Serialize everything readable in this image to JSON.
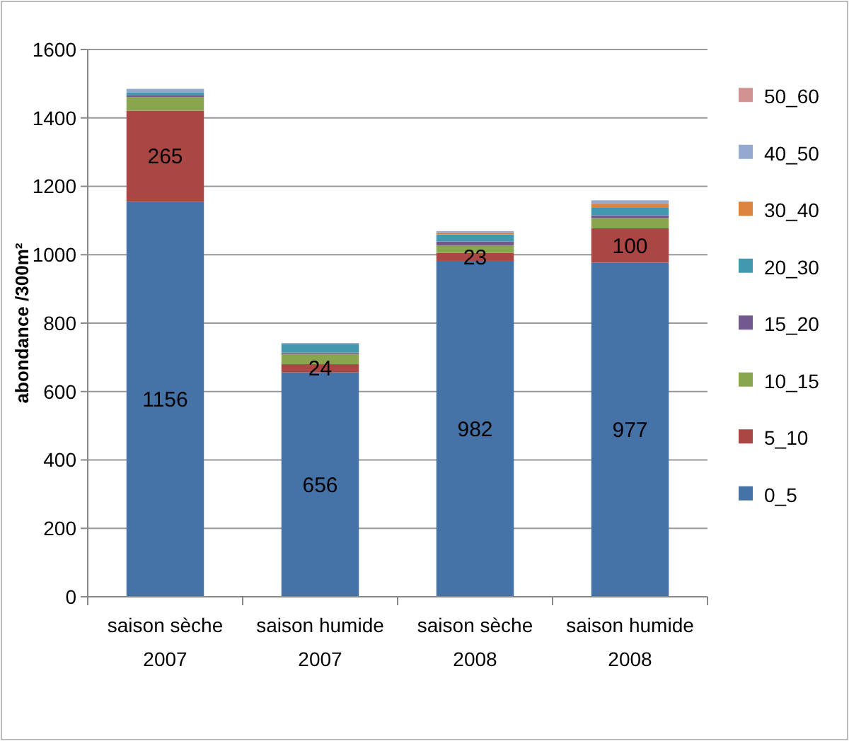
{
  "chart_data": {
    "type": "bar",
    "stacked": true,
    "ylabel": "abondance /300m²",
    "categories": [
      "saison sèche\n2007",
      "saison humide\n2007",
      "saison sèche\n2008",
      "saison humide\n2008"
    ],
    "ylim": [
      0,
      1600
    ],
    "yticks": [
      0,
      200,
      400,
      600,
      800,
      1000,
      1200,
      1400,
      1600
    ],
    "grid": "y",
    "legend": "right",
    "series": [
      {
        "name": "0_5",
        "color": "#4572a7",
        "values": [
          1156,
          656,
          982,
          977
        ],
        "value_labels": [
          "1156",
          "656",
          "982",
          "977"
        ]
      },
      {
        "name": "5_10",
        "color": "#aa4643",
        "values": [
          265,
          24,
          23,
          100
        ],
        "value_labels": [
          "265",
          "24",
          "23",
          "100"
        ]
      },
      {
        "name": "10_15",
        "color": "#89a54e",
        "values": [
          40,
          30,
          22,
          30
        ]
      },
      {
        "name": "15_20",
        "color": "#71588f",
        "values": [
          6,
          4,
          12,
          8
        ]
      },
      {
        "name": "20_30",
        "color": "#4198af",
        "values": [
          8,
          24,
          20,
          22
        ]
      },
      {
        "name": "30_40",
        "color": "#db843d",
        "values": [
          null,
          0,
          6,
          12
        ]
      },
      {
        "name": "40_50",
        "color": "#93a9cf",
        "values": [
          10,
          4,
          4,
          10
        ]
      },
      {
        "name": "50_60",
        "color": "#d19392",
        "values": [
          0,
          0,
          0,
          0
        ]
      }
    ]
  }
}
